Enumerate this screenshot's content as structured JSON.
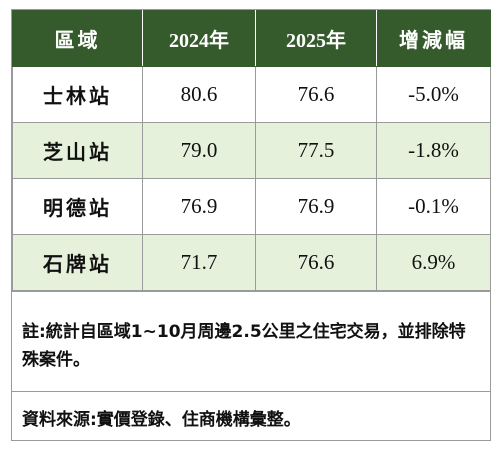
{
  "table": {
    "headers": [
      "區域",
      "2024年",
      "2025年",
      "增減幅"
    ],
    "rows": [
      {
        "station": "士林站",
        "y2024": "80.6",
        "y2025": "76.6",
        "change": "-5.0%"
      },
      {
        "station": "芝山站",
        "y2024": "79.0",
        "y2025": "77.5",
        "change": "-1.8%"
      },
      {
        "station": "明德站",
        "y2024": "76.9",
        "y2025": "76.9",
        "change": "-0.1%"
      },
      {
        "station": "石牌站",
        "y2024": "71.7",
        "y2025": "76.6",
        "change": "6.9%"
      }
    ]
  },
  "note": "註:統計自區域1~10月周邊2.5公里之住宅交易，並排除特殊案件。",
  "source": "資料來源:實價登錄、住商機構彙整。",
  "colors": {
    "header_bg": "#355a2c",
    "header_text": "#ffffff",
    "alt_row_bg": "#e5f1da",
    "border": "#9a9a9a"
  }
}
